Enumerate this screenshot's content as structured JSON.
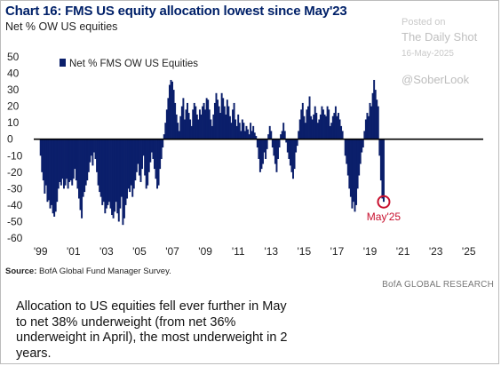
{
  "header": {
    "title": "Chart 16: FMS US equity allocation lowest since May'23",
    "subtitle": "Net % OW US equities"
  },
  "watermark": {
    "line1": "Posted on",
    "line2": "The Daily Shot",
    "line3": "16-May-2025",
    "line4": "@SoberLook"
  },
  "source": {
    "label": "Source:",
    "text": " BofA Global Fund Manager Survey."
  },
  "brand": "BofA GLOBAL RESEARCH",
  "caption": "Allocation to US equities fell ever further in May to net 38% underweight (from net 36% underweight in April), the most underweight in 2 years.",
  "colors": {
    "bars": "#0b1f6b",
    "highlight": "#c8102e",
    "title": "#012169"
  },
  "chart_data": {
    "type": "bar",
    "series": [
      {
        "name": "Net % FMS OW US Equities",
        "x_start": 1999.0,
        "step_months": 1,
        "values": [
          -10,
          -20,
          -25,
          -33,
          -28,
          -38,
          -37,
          -42,
          -40,
          -45,
          -47,
          -44,
          -38,
          -30,
          -26,
          -28,
          -24,
          -30,
          -28,
          -24,
          -30,
          -26,
          -25,
          -28,
          -24,
          -18,
          -25,
          -30,
          -36,
          -43,
          -48,
          -35,
          -32,
          -28,
          -25,
          -20,
          -14,
          -10,
          -16,
          -8,
          -12,
          -20,
          -28,
          -32,
          -35,
          -40,
          -38,
          -45,
          -42,
          -40,
          -38,
          -42,
          -46,
          -48,
          -44,
          -38,
          -45,
          -50,
          -42,
          -35,
          -52,
          -48,
          -40,
          -36,
          -30,
          -32,
          -28,
          -35,
          -30,
          -25,
          -20,
          -15,
          -22,
          -26,
          -18,
          -10,
          -22,
          -30,
          -28,
          -20,
          -14,
          -8,
          -12,
          -18,
          -24,
          -30,
          -28,
          -18,
          -12,
          -5,
          3,
          10,
          18,
          25,
          33,
          36,
          35,
          30,
          22,
          15,
          10,
          5,
          14,
          20,
          25,
          12,
          18,
          22,
          16,
          12,
          8,
          18,
          22,
          20,
          15,
          12,
          18,
          15,
          20,
          22,
          18,
          25,
          24,
          18,
          12,
          8,
          15,
          22,
          28,
          24,
          20,
          16,
          28,
          25,
          20,
          15,
          24,
          20,
          14,
          10,
          18,
          22,
          12,
          8,
          15,
          10,
          5,
          12,
          10,
          5,
          8,
          6,
          3,
          10,
          5,
          8,
          4,
          2,
          -5,
          -12,
          -20,
          -18,
          -15,
          -8,
          -12,
          -6,
          3,
          8,
          5,
          -5,
          -10,
          -15,
          -20,
          -12,
          -5,
          3,
          5,
          10,
          5,
          -2,
          -8,
          -12,
          -16,
          -20,
          -24,
          -18,
          -8,
          -4,
          5,
          12,
          18,
          22,
          14,
          10,
          18,
          20,
          26,
          14,
          12,
          15,
          20,
          16,
          10,
          12,
          15,
          20,
          18,
          15,
          14,
          20,
          18,
          8,
          10,
          14,
          16,
          20,
          14,
          16,
          12,
          8,
          5,
          0,
          -10,
          -15,
          -22,
          -30,
          -35,
          -42,
          -38,
          -44,
          -40,
          -30,
          -22,
          -15,
          -8,
          -5,
          5,
          12,
          16,
          14,
          22,
          20,
          28,
          36,
          30,
          24,
          20,
          -10,
          -25,
          -36,
          -38
        ]
      }
    ],
    "highlight": {
      "label": "May'25",
      "value": -38
    },
    "xticks": [
      "'99",
      "'01",
      "'03",
      "'05",
      "'07",
      "'09",
      "'11",
      "'13",
      "'15",
      "'17",
      "'19",
      "'21",
      "'23",
      "'25"
    ],
    "xtick_years": [
      1999,
      2001,
      2003,
      2005,
      2007,
      2009,
      2011,
      2013,
      2015,
      2017,
      2019,
      2021,
      2023,
      2025
    ],
    "xlim": [
      1998.8,
      2026.2
    ],
    "yticks": [
      50,
      40,
      30,
      20,
      10,
      0,
      -10,
      -20,
      -30,
      -40,
      -50,
      -60
    ],
    "ylim": [
      -60,
      50
    ],
    "grid": false,
    "legend": "top-left"
  }
}
